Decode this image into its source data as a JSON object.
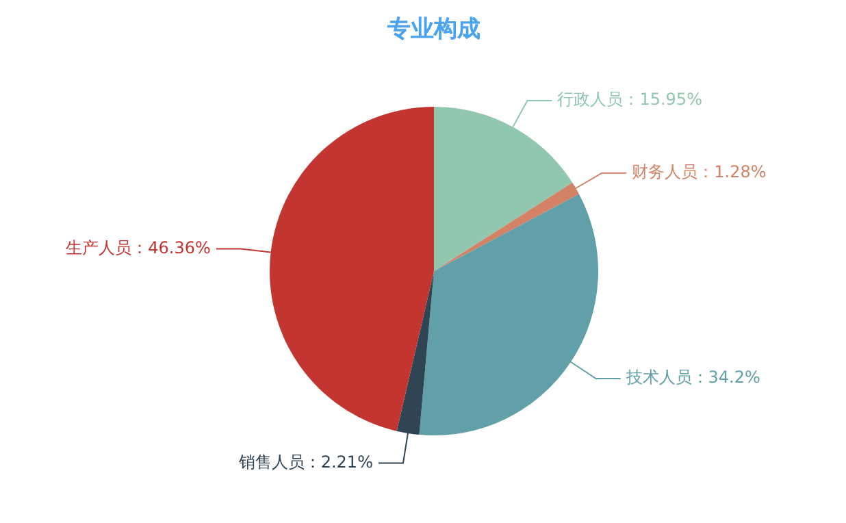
{
  "chart_data": {
    "type": "pie",
    "title": "专业构成",
    "categories": [
      "行政人员",
      "财务人员",
      "技术人员",
      "销售人员",
      "生产人员"
    ],
    "values": [
      15.95,
      1.28,
      34.2,
      2.21,
      46.36
    ],
    "colors": [
      "#91c7ae",
      "#d48265",
      "#61a0a8",
      "#2f4554",
      "#c23531"
    ],
    "value_labels": [
      "15.95%",
      "1.28%",
      "34.2%",
      "2.21%",
      "46.36%"
    ],
    "legend": false
  }
}
